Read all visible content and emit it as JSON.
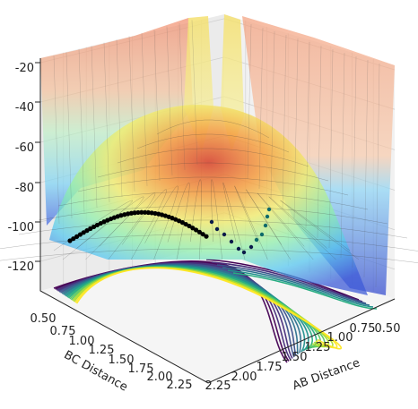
{
  "chart_data": {
    "type": "surface3d",
    "title": "",
    "zaxis": {
      "ticks": [
        "-20",
        "-40",
        "-60",
        "-80",
        "-100",
        "-120"
      ],
      "range": [
        -135,
        -18
      ]
    },
    "bc_axis": {
      "label": "BC Distance",
      "ticks": [
        "0.50",
        "0.75",
        "1.00",
        "1.25",
        "1.50",
        "1.75",
        "2.00",
        "2.25"
      ],
      "range": [
        0.5,
        2.3
      ]
    },
    "ab_axis": {
      "label": "AB Distance",
      "ticks": [
        "2.25",
        "2.00",
        "1.75",
        "1.50",
        "1.25",
        "1.00",
        "0.75",
        "0.50"
      ],
      "range": [
        0.5,
        2.3
      ]
    },
    "surface_colormap": "jet",
    "contour_colormap": "viridis",
    "trajectory": {
      "color": "#000000",
      "points_shown": true
    },
    "grid": true
  }
}
